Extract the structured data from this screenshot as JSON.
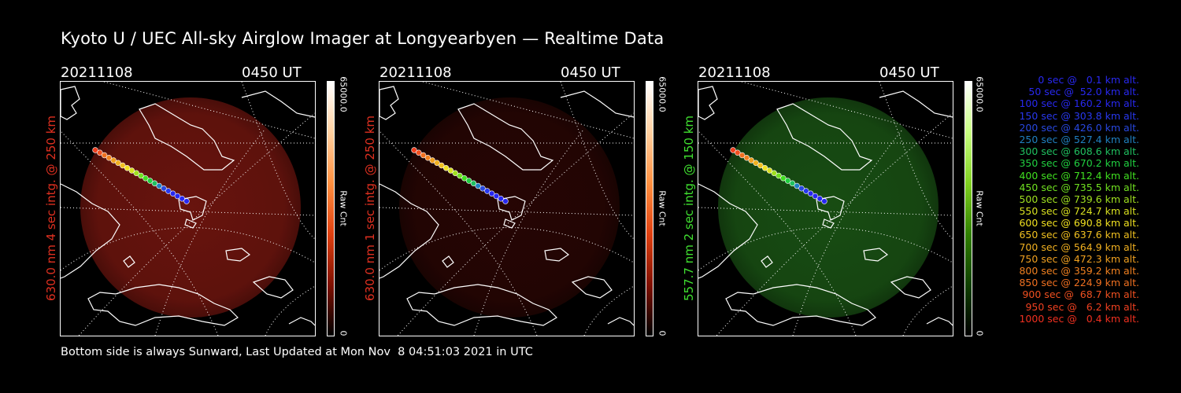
{
  "title": "Kyoto U / UEC All-sky Airglow Imager at Longyearbyen — Realtime Data",
  "panels": [
    {
      "date": "20211108",
      "time": "0450 UT",
      "label": "630.0 nm 4 sec intg. @ 250 km",
      "label_color": "#e03020",
      "glow_color": "#7a1710",
      "glow_opacity": 0.85,
      "colorbar_max": "65000.0",
      "colorbar_min": "0",
      "colorbar_unit": "Raw Cnt",
      "colorbar_colors": [
        "#ffffff",
        "#ffd0a0",
        "#ff9040",
        "#e04010",
        "#801000",
        "#000000"
      ]
    },
    {
      "date": "20211108",
      "time": "0450 UT",
      "label": "630.0 nm 1 sec intg. @ 250 km",
      "label_color": "#e03020",
      "glow_color": "#2a0604",
      "glow_opacity": 0.9,
      "colorbar_max": "65000.0",
      "colorbar_min": "0",
      "colorbar_unit": "Raw Cnt",
      "colorbar_colors": [
        "#ffffff",
        "#ffd0a0",
        "#ff9040",
        "#e04010",
        "#801000",
        "#000000"
      ]
    },
    {
      "date": "20211108",
      "time": "0450 UT",
      "label": "557.7 nm 2 sec intg. @ 150 km",
      "label_color": "#40e030",
      "glow_color": "#1c5a16",
      "glow_opacity": 0.85,
      "colorbar_max": "65000.0",
      "colorbar_min": "0",
      "colorbar_unit": "Raw Cnt",
      "colorbar_colors": [
        "#ffffff",
        "#c8ff80",
        "#80d020",
        "#308000",
        "#104000",
        "#000000"
      ]
    }
  ],
  "footer": "Bottom side is always Sunward, Last Updated at Mon Nov  8 04:51:03 2021 in UTC",
  "legend": [
    {
      "text": "0 sec @   0.1 km alt.",
      "color": "#2828f0"
    },
    {
      "text": "50 sec @  52.0 km alt.",
      "color": "#2828f0"
    },
    {
      "text": "100 sec @ 160.2 km alt.",
      "color": "#2828f0"
    },
    {
      "text": "150 sec @ 303.8 km alt.",
      "color": "#2838f0"
    },
    {
      "text": "200 sec @ 426.0 km alt.",
      "color": "#2848e0"
    },
    {
      "text": "250 sec @ 527.4 km alt.",
      "color": "#2080c0"
    },
    {
      "text": "300 sec @ 608.6 km alt.",
      "color": "#20c060"
    },
    {
      "text": "350 sec @ 670.2 km alt.",
      "color": "#20d040"
    },
    {
      "text": "400 sec @ 712.4 km alt.",
      "color": "#40e020"
    },
    {
      "text": "450 sec @ 735.5 km alt.",
      "color": "#70e020"
    },
    {
      "text": "500 sec @ 739.6 km alt.",
      "color": "#a0e020"
    },
    {
      "text": "550 sec @ 724.7 km alt.",
      "color": "#d8e020"
    },
    {
      "text": "600 sec @ 690.8 km alt.",
      "color": "#f0e020"
    },
    {
      "text": "650 sec @ 637.6 km alt.",
      "color": "#f0c020"
    },
    {
      "text": "700 sec @ 564.9 km alt.",
      "color": "#f0b020"
    },
    {
      "text": "750 sec @ 472.3 km alt.",
      "color": "#f0a020"
    },
    {
      "text": "800 sec @ 359.2 km alt.",
      "color": "#f08020"
    },
    {
      "text": "850 sec @ 224.9 km alt.",
      "color": "#f07020"
    },
    {
      "text": "900 sec @  68.7 km alt.",
      "color": "#f05020"
    },
    {
      "text": "950 sec @   6.2 km alt.",
      "color": "#f04020"
    },
    {
      "text": "1000 sec @   0.4 km alt.",
      "color": "#f03020"
    }
  ],
  "track_colors": [
    "#f04020",
    "#f05020",
    "#f07020",
    "#f08020",
    "#f0a020",
    "#f0b020",
    "#f0c020",
    "#f0e020",
    "#d8e020",
    "#a0e020",
    "#70e020",
    "#40e020",
    "#20d040",
    "#20c060",
    "#2080c0",
    "#2848e0",
    "#2838f0",
    "#2828f0",
    "#2828f0",
    "#2828f0",
    "#2828f0"
  ]
}
